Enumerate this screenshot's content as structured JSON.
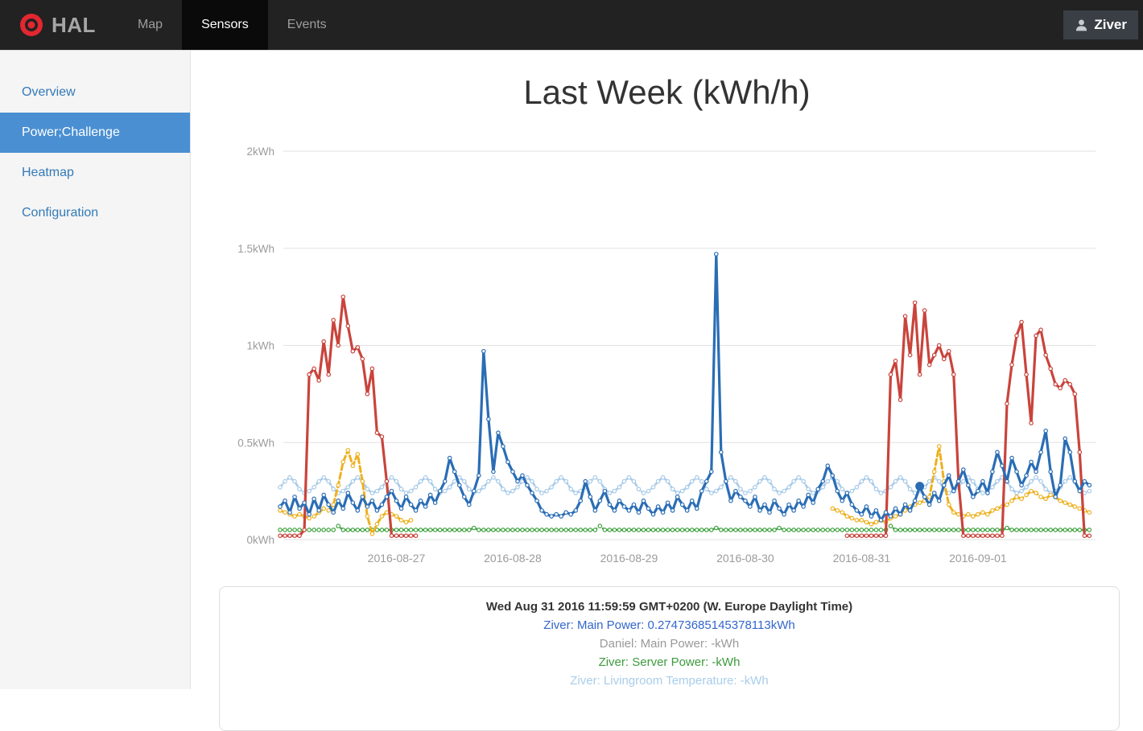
{
  "navbar": {
    "brand": "HAL",
    "items": [
      {
        "label": "Map",
        "active": false
      },
      {
        "label": "Sensors",
        "active": true
      },
      {
        "label": "Events",
        "active": false
      }
    ],
    "user": "Ziver",
    "colors": {
      "bar": "#222222",
      "active_bg": "#0a0a0a",
      "logo_red": "#e32730"
    }
  },
  "sidebar": {
    "items": [
      {
        "label": "Overview",
        "active": false
      },
      {
        "label": "Power;Challenge",
        "active": true
      },
      {
        "label": "Heatmap",
        "active": false
      },
      {
        "label": "Configuration",
        "active": false
      }
    ],
    "active_bg": "#4a8fd2",
    "link_color": "#337ab7"
  },
  "tooltip": {
    "timestamp": "Wed Aug 31 2016 11:59:59 GMT+0200 (W. Europe Daylight Time)",
    "rows": [
      {
        "text": "Ziver: Main Power: 0.27473685145378113kWh",
        "color": "#3366cc"
      },
      {
        "text": "Daniel: Main Power: -kWh",
        "color": "#999999"
      },
      {
        "text": "Ziver: Server Power: -kWh",
        "color": "#3d9a3d"
      },
      {
        "text": "Ziver: Livingroom Temperature: -kWh",
        "color": "#a9cdea"
      }
    ]
  },
  "chart_data": {
    "type": "line",
    "title": "Last Week (kWh/h)",
    "x_start": "2016-08-26 00:00",
    "x_step_hours": 1,
    "xlabel": "",
    "ylabel": "kWh",
    "ylim": [
      0,
      2.17
    ],
    "grid": "horizontal-only",
    "y_ticks": [
      {
        "label": "0kWh",
        "value": 0.0
      },
      {
        "label": "0.5kWh",
        "value": 0.5
      },
      {
        "label": "1kWh",
        "value": 1.0
      },
      {
        "label": "1.5kWh",
        "value": 1.5
      },
      {
        "label": "2kWh",
        "value": 2.0
      }
    ],
    "x_ticks": [
      {
        "label": "2016-08-27",
        "hour": 24
      },
      {
        "label": "2016-08-28",
        "hour": 48
      },
      {
        "label": "2016-08-29",
        "hour": 72
      },
      {
        "label": "2016-08-30",
        "hour": 96
      },
      {
        "label": "2016-08-31",
        "hour": 120
      },
      {
        "label": "2016-09-01",
        "hour": 144
      }
    ],
    "hover_point": {
      "series": "Ziver: Main Power",
      "hour": 132,
      "value": 0.27473685145378113
    },
    "series": [
      {
        "name": "Ziver: Livingroom Temperature",
        "color": "#a8cbe8",
        "style": "dash-short",
        "segments": [
          {
            "start_hour": 0,
            "values": [
              0.27,
              0.3,
              0.32,
              0.3,
              0.26,
              0.24,
              0.25,
              0.27,
              0.3,
              0.32,
              0.3,
              0.26,
              0.24,
              0.25,
              0.27,
              0.3,
              0.32,
              0.3,
              0.26,
              0.24,
              0.25,
              0.27,
              0.3,
              0.32,
              0.3,
              0.26,
              0.24,
              0.25,
              0.27,
              0.3,
              0.32,
              0.3,
              0.26,
              0.24,
              0.25,
              0.27,
              0.3,
              0.32,
              0.3,
              0.26,
              0.24,
              0.25,
              0.27,
              0.3,
              0.32,
              0.3,
              0.26,
              0.24,
              0.25,
              0.27,
              0.3,
              0.32,
              0.3,
              0.26,
              0.24,
              0.25,
              0.27,
              0.3,
              0.32,
              0.3,
              0.26,
              0.24,
              0.25,
              0.27,
              0.3,
              0.32,
              0.3,
              0.26,
              0.24,
              0.25,
              0.27,
              0.3,
              0.32,
              0.3,
              0.26,
              0.24,
              0.25,
              0.27,
              0.3,
              0.32,
              0.3,
              0.26,
              0.24,
              0.25,
              0.27,
              0.3,
              0.32,
              0.3,
              0.26,
              0.24,
              0.25,
              0.27,
              0.3,
              0.32,
              0.3,
              0.26,
              0.24,
              0.25,
              0.27,
              0.3,
              0.32,
              0.3,
              0.26,
              0.24,
              0.25,
              0.27,
              0.3,
              0.32,
              0.3,
              0.26,
              0.24,
              0.25,
              0.27,
              0.3,
              0.32,
              0.3,
              0.26,
              0.24,
              0.25,
              0.27,
              0.3,
              0.32,
              0.3,
              0.26,
              0.24,
              0.25,
              0.27,
              0.3,
              0.32,
              0.3,
              0.26,
              0.24,
              0.25,
              0.27,
              0.3,
              0.32,
              0.3,
              0.26,
              0.24,
              0.25,
              0.27,
              0.3,
              0.32,
              0.3,
              0.26,
              0.24,
              0.25,
              0.27,
              0.3,
              0.32,
              0.3,
              0.26,
              0.24,
              0.25,
              0.27,
              0.3,
              0.32,
              0.3,
              0.26,
              0.24,
              0.25,
              0.27,
              0.3,
              0.32,
              0.3,
              0.26,
              0.24,
              0.25
            ]
          }
        ]
      },
      {
        "name": "Ziver: Server Power",
        "color": "#3fa23f",
        "style": "dotted",
        "segments": [
          {
            "start_hour": 0,
            "values": [
              0.05,
              0.05,
              0.05,
              0.05,
              0.05,
              0.05,
              0.05,
              0.05,
              0.05,
              0.05,
              0.05,
              0.05,
              0.07,
              0.05,
              0.05,
              0.05,
              0.05,
              0.05,
              0.05,
              0.05,
              0.05,
              0.05,
              0.05,
              0.05,
              0.05,
              0.05,
              0.05,
              0.05,
              0.05,
              0.05,
              0.05,
              0.05,
              0.05,
              0.05,
              0.05,
              0.05,
              0.05,
              0.05,
              0.05,
              0.05,
              0.06,
              0.05,
              0.05,
              0.05,
              0.05,
              0.05,
              0.05,
              0.05,
              0.05,
              0.05,
              0.05,
              0.05,
              0.05,
              0.05,
              0.05,
              0.05,
              0.05,
              0.05,
              0.05,
              0.05,
              0.05,
              0.05,
              0.05,
              0.05,
              0.05,
              0.05,
              0.07,
              0.05,
              0.05,
              0.05,
              0.05,
              0.05,
              0.05,
              0.05,
              0.05,
              0.05,
              0.05,
              0.05,
              0.05,
              0.05,
              0.05,
              0.05,
              0.05,
              0.05,
              0.05,
              0.05,
              0.05,
              0.05,
              0.05,
              0.05,
              0.06,
              0.05,
              0.05,
              0.05,
              0.05,
              0.05,
              0.05,
              0.05,
              0.05,
              0.05,
              0.05,
              0.05,
              0.05,
              0.06,
              0.05,
              0.05,
              0.05,
              0.05,
              0.05,
              0.05,
              0.05,
              0.05,
              0.05,
              0.05,
              0.05,
              0.05,
              0.05,
              0.05,
              0.05,
              0.05,
              0.05,
              0.05,
              0.05,
              0.05,
              0.05,
              0.05,
              0.07,
              0.05,
              0.05,
              0.05,
              0.05,
              0.05,
              0.05,
              0.05,
              0.05,
              0.05,
              0.05,
              0.05,
              0.05,
              0.05,
              0.05,
              0.05,
              0.05,
              0.05,
              0.05,
              0.05,
              0.05,
              0.05,
              0.05,
              0.05,
              0.06,
              0.05,
              0.05,
              0.05,
              0.05,
              0.05,
              0.05,
              0.05,
              0.05,
              0.05,
              0.05,
              0.05,
              0.05,
              0.05,
              0.05,
              0.05,
              0.05,
              0.05
            ]
          }
        ]
      },
      {
        "name": "unlabeled-yellow-series",
        "color": "#edb120",
        "style": "dashed",
        "segments": [
          {
            "start_hour": 0,
            "values": [
              0.15,
              0.14,
              0.13,
              0.12,
              0.13,
              0.12,
              0.11,
              0.12,
              0.14,
              0.16,
              0.15,
              0.18,
              0.28,
              0.4,
              0.46,
              0.38,
              0.44,
              0.3,
              0.12,
              0.03,
              0.08,
              0.12,
              0.14,
              0.13,
              0.12,
              0.1,
              0.09,
              0.1
            ]
          },
          {
            "start_hour": 114,
            "values": [
              0.16,
              0.15,
              0.14,
              0.12,
              0.11,
              0.1,
              0.1,
              0.09,
              0.08,
              0.09,
              0.1,
              0.09,
              0.11,
              0.12,
              0.13,
              0.15,
              0.17,
              0.18,
              0.19,
              0.2,
              0.22,
              0.35,
              0.48,
              0.3,
              0.18,
              0.14,
              0.13,
              0.12,
              0.13,
              0.12,
              0.13,
              0.14,
              0.13,
              0.15,
              0.16,
              0.17,
              0.18,
              0.2,
              0.22,
              0.21,
              0.23,
              0.25,
              0.24,
              0.22,
              0.21,
              0.23,
              0.22,
              0.2,
              0.19,
              0.18,
              0.17,
              0.16,
              0.15,
              0.14
            ]
          }
        ]
      },
      {
        "name": "Daniel: Main Power",
        "color": "#c9443c",
        "style": "solid",
        "segments": [
          {
            "start_hour": 0,
            "values": [
              0.02,
              0.02,
              0.02,
              0.02,
              0.02,
              0.05,
              0.85,
              0.88,
              0.82,
              1.02,
              0.85,
              1.13,
              1.0,
              1.25,
              1.1,
              0.97,
              0.99,
              0.93,
              0.75,
              0.88,
              0.55,
              0.53,
              0.3,
              0.02,
              0.02,
              0.02,
              0.02,
              0.02,
              0.02
            ]
          },
          {
            "start_hour": 117,
            "values": [
              0.02,
              0.02,
              0.02,
              0.02,
              0.02,
              0.02,
              0.02,
              0.02,
              0.02,
              0.85,
              0.92,
              0.72,
              1.15,
              0.95,
              1.22,
              0.85,
              1.18,
              0.9,
              0.95,
              1.0,
              0.93,
              0.97,
              0.85,
              0.3,
              0.02,
              0.02,
              0.02,
              0.02,
              0.02,
              0.02,
              0.02,
              0.02,
              0.02,
              0.7,
              0.9,
              1.05,
              1.12,
              0.85,
              0.6,
              1.05,
              1.08,
              0.95,
              0.88,
              0.8,
              0.78,
              0.82,
              0.8,
              0.75,
              0.45,
              0.02,
              0.02
            ]
          }
        ]
      },
      {
        "name": "Ziver: Main Power",
        "color": "#2a6db5",
        "style": "solid",
        "segments": [
          {
            "start_hour": 0,
            "values": [
              0.17,
              0.2,
              0.14,
              0.22,
              0.16,
              0.19,
              0.13,
              0.21,
              0.15,
              0.23,
              0.18,
              0.14,
              0.2,
              0.16,
              0.24,
              0.19,
              0.15,
              0.22,
              0.17,
              0.2,
              0.15,
              0.18,
              0.22,
              0.25,
              0.2,
              0.16,
              0.22,
              0.18,
              0.15,
              0.2,
              0.17,
              0.23,
              0.19,
              0.25,
              0.3,
              0.42,
              0.35,
              0.28,
              0.22,
              0.18,
              0.25,
              0.33,
              0.97,
              0.62,
              0.35,
              0.55,
              0.48,
              0.4,
              0.35,
              0.3,
              0.33,
              0.28,
              0.24,
              0.2,
              0.15,
              0.13,
              0.12,
              0.13,
              0.12,
              0.14,
              0.13,
              0.15,
              0.2,
              0.3,
              0.22,
              0.15,
              0.2,
              0.25,
              0.18,
              0.15,
              0.2,
              0.17,
              0.15,
              0.18,
              0.14,
              0.2,
              0.16,
              0.13,
              0.17,
              0.14,
              0.19,
              0.15,
              0.22,
              0.18,
              0.15,
              0.2,
              0.16,
              0.25,
              0.3,
              0.35,
              1.47,
              0.45,
              0.3,
              0.2,
              0.25,
              0.22,
              0.2,
              0.17,
              0.22,
              0.15,
              0.18,
              0.14,
              0.2,
              0.16,
              0.13,
              0.18,
              0.15,
              0.2,
              0.17,
              0.23,
              0.19,
              0.26,
              0.3,
              0.38,
              0.33,
              0.25,
              0.2,
              0.24,
              0.18,
              0.15,
              0.13,
              0.17,
              0.12,
              0.15,
              0.1,
              0.14,
              0.12,
              0.16,
              0.13,
              0.18,
              0.15,
              0.2,
              0.27,
              0.22,
              0.18,
              0.24,
              0.2,
              0.28,
              0.33,
              0.25,
              0.3,
              0.36,
              0.28,
              0.22,
              0.25,
              0.3,
              0.24,
              0.35,
              0.45,
              0.38,
              0.3,
              0.42,
              0.35,
              0.28,
              0.33,
              0.4,
              0.35,
              0.45,
              0.56,
              0.35,
              0.22,
              0.28,
              0.52,
              0.45,
              0.3,
              0.25,
              0.3,
              0.28
            ]
          }
        ]
      }
    ]
  }
}
